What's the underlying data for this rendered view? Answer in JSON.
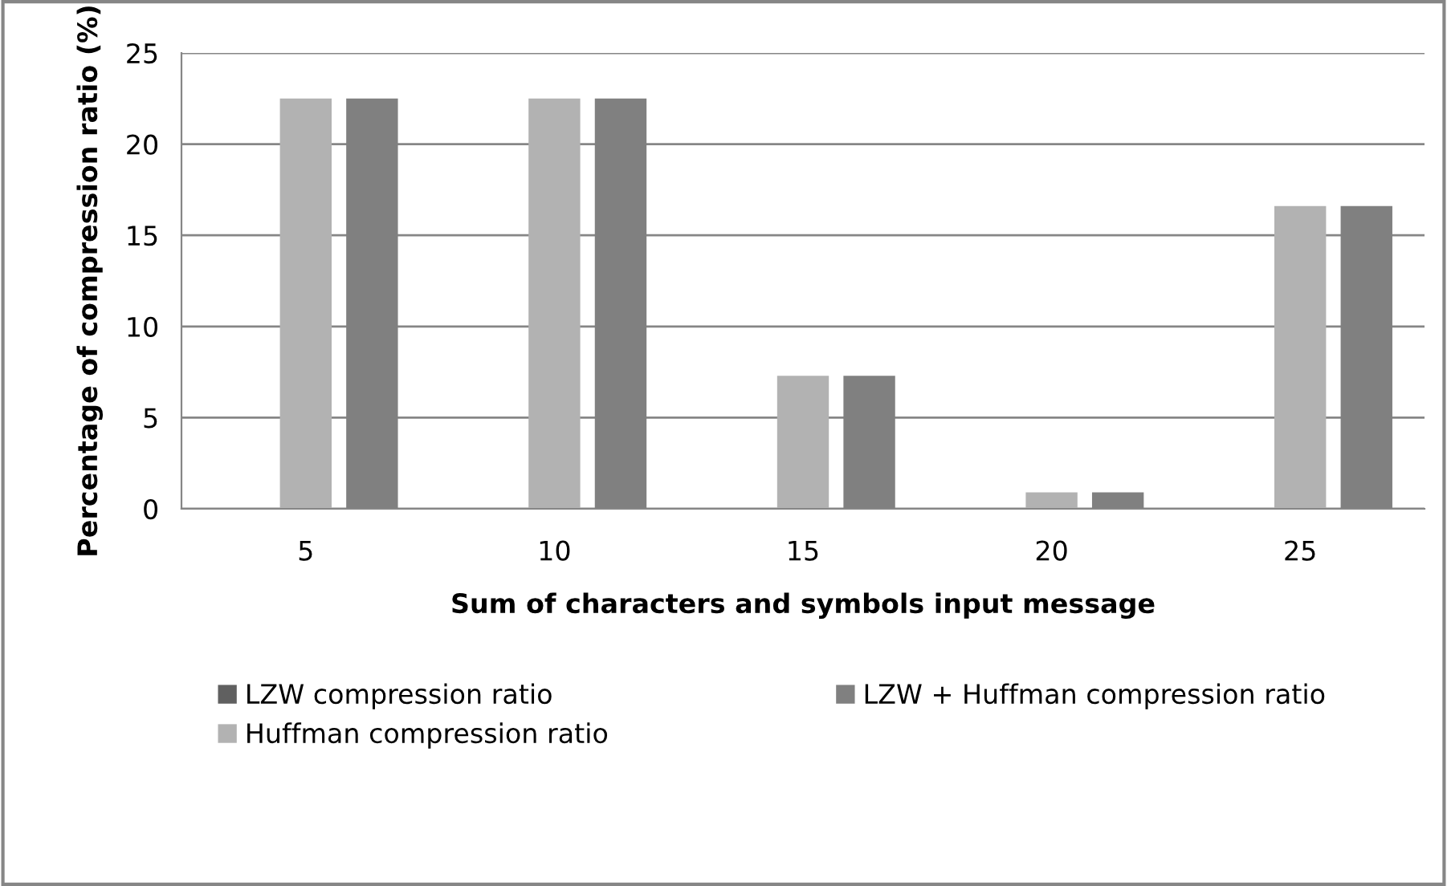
{
  "chart_data": {
    "type": "bar",
    "xlabel": "Sum of characters and symbols input message",
    "ylabel": "Percentage of compression ratio (%)",
    "categories": [
      "5",
      "10",
      "15",
      "20",
      "25"
    ],
    "series": [
      {
        "name": "LZW compression ratio",
        "color": "#606060",
        "values": [
          0,
          0,
          0,
          0,
          0
        ]
      },
      {
        "name": "Huffman compression ratio",
        "color": "#b2b2b2",
        "values": [
          22.5,
          22.5,
          7.3,
          0.9,
          16.6
        ]
      },
      {
        "name": "LZW + Huffman compression ratio",
        "color": "#808080",
        "values": [
          22.5,
          22.5,
          7.3,
          0.9,
          16.6
        ]
      }
    ],
    "ylim": [
      0,
      25
    ],
    "yticks": [
      0,
      5,
      10,
      15,
      20,
      25
    ],
    "grid": "y",
    "legend": "bottom"
  }
}
